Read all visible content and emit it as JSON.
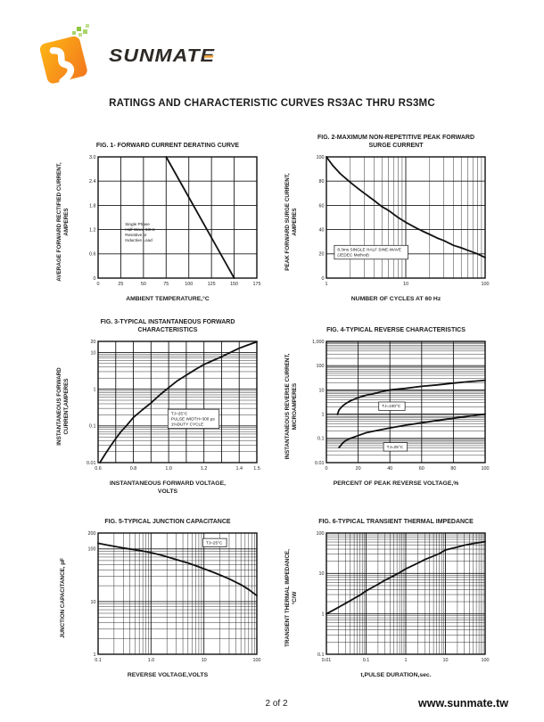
{
  "page": {
    "title": "RATINGS AND CHARACTERISTIC CURVES RS3AC THRU RS3MC",
    "footer": {
      "page_number": "2 of 2",
      "website": "www.sunmate.tw"
    }
  },
  "logo": {
    "brand": "SUNMATE",
    "colors": {
      "orange": "#f7941e",
      "orange_light": "#fdb515",
      "green": "#8dc63f",
      "text": "#2e2a26",
      "accent_bar": "#eda33c"
    }
  },
  "chart_data": [
    {
      "type": "line",
      "title": "FIG. 1- FORWARD CURRENT DERATING CURVE",
      "xlabel": "AMBIENT TEMPERATURE,°C",
      "ylabel": "AVERAGE FORWARD RECTIFIED CURRENT,\nAMPERES",
      "x": {
        "scale": "linear",
        "min": 0,
        "max": 175,
        "step": 25,
        "ticks": [
          {
            "v": 0,
            "label": "0"
          },
          {
            "v": 25,
            "label": "25"
          },
          {
            "v": 50,
            "label": "50"
          },
          {
            "v": 75,
            "label": "75"
          },
          {
            "v": 100,
            "label": "100"
          },
          {
            "v": 125,
            "label": "125"
          },
          {
            "v": 150,
            "label": "150"
          },
          {
            "v": 175,
            "label": "175"
          }
        ]
      },
      "y": {
        "scale": "linear",
        "min": 0,
        "max": 3,
        "step": 0.6,
        "ticks": [
          {
            "v": 0,
            "label": "0"
          },
          {
            "v": 0.6,
            "label": "0.6"
          },
          {
            "v": 1.2,
            "label": "1.2"
          },
          {
            "v": 1.8,
            "label": "1.8"
          },
          {
            "v": 2.4,
            "label": "2.4"
          },
          {
            "v": 3,
            "label": "3.0"
          }
        ]
      },
      "series": [
        {
          "name": "derating-line",
          "points": [
            [
              75,
              3
            ],
            [
              150,
              0
            ]
          ]
        }
      ],
      "annotations": [
        {
          "boxed": false,
          "fx": 0.15,
          "fy": 0.52,
          "lines": [
            "Single Phase",
            "Half Wave 60Hz",
            "Resistive or",
            "Inductive Load"
          ]
        }
      ]
    },
    {
      "type": "line",
      "title": "FIG. 2-MAXIMUM NON-REPETITIVE PEAK FORWARD\nSURGE CURRENT",
      "xlabel": "NUMBER OF CYCLES AT 60 Hz",
      "ylabel": "PEAK  FORWARD SURGE CURRENT,\nAMPERES",
      "x": {
        "scale": "log",
        "min": 1,
        "max": 100,
        "ticks": [
          {
            "v": 1,
            "label": "1"
          },
          {
            "v": 10,
            "label": "10"
          },
          {
            "v": 100,
            "label": "100"
          }
        ]
      },
      "y": {
        "scale": "linear",
        "min": 0,
        "max": 100,
        "step": 20,
        "ticks": [
          {
            "v": 0,
            "label": "0"
          },
          {
            "v": 20,
            "label": "20"
          },
          {
            "v": 40,
            "label": "40"
          },
          {
            "v": 60,
            "label": "60"
          },
          {
            "v": 80,
            "label": "80"
          },
          {
            "v": 100,
            "label": "100"
          }
        ]
      },
      "series": [
        {
          "name": "surge-current-curve",
          "points": [
            [
              1,
              100
            ],
            [
              1.2,
              93
            ],
            [
              1.5,
              86
            ],
            [
              2,
              79
            ],
            [
              2.5,
              74
            ],
            [
              3,
              70
            ],
            [
              4,
              64
            ],
            [
              5,
              59
            ],
            [
              6,
              56
            ],
            [
              8,
              50
            ],
            [
              10,
              46
            ],
            [
              13,
              42
            ],
            [
              16,
              39
            ],
            [
              20,
              36
            ],
            [
              25,
              33
            ],
            [
              30,
              31
            ],
            [
              40,
              27
            ],
            [
              50,
              25
            ],
            [
              60,
              23
            ],
            [
              80,
              20
            ],
            [
              100,
              17
            ]
          ]
        }
      ],
      "annotations": [
        {
          "boxed": true,
          "fx": 0.05,
          "fy": 0.73,
          "lines": [
            "8.3ms SINGLE HALF SINE-WAVE",
            "(JEDEC Method)"
          ]
        }
      ]
    },
    {
      "type": "line",
      "title": "FIG. 3-TYPICAL INSTANTANEOUS FORWARD\nCHARACTERISTICS",
      "xlabel": "INSTANTANEOUS FORWARD VOLTAGE,\nVOLTS",
      "ylabel": "INSTANTANEOUS FORWARD\nCURRENT,AMPERES",
      "x": {
        "scale": "linear",
        "min": 0.6,
        "max": 1.5,
        "step": 0.1,
        "ticks": [
          {
            "v": 0.6,
            "label": "0.6"
          },
          {
            "v": 0.8,
            "label": "0.8"
          },
          {
            "v": 1,
            "label": "1.0"
          },
          {
            "v": 1.2,
            "label": "1.2"
          },
          {
            "v": 1.4,
            "label": "1.4"
          },
          {
            "v": 1.5,
            "label": "1.5"
          }
        ]
      },
      "y": {
        "scale": "log",
        "min": 0.01,
        "max": 20,
        "ticks": [
          {
            "v": 0.01,
            "label": "0.01"
          },
          {
            "v": 0.1,
            "label": "0.1"
          },
          {
            "v": 1,
            "label": "1"
          },
          {
            "v": 10,
            "label": "10"
          },
          {
            "v": 20,
            "label": "20"
          }
        ]
      },
      "series": [
        {
          "name": "forward-characteristic-curve",
          "points": [
            [
              0.61,
              0.01
            ],
            [
              0.64,
              0.017
            ],
            [
              0.67,
              0.028
            ],
            [
              0.7,
              0.045
            ],
            [
              0.73,
              0.07
            ],
            [
              0.76,
              0.1
            ],
            [
              0.8,
              0.17
            ],
            [
              0.85,
              0.27
            ],
            [
              0.9,
              0.42
            ],
            [
              0.95,
              0.7
            ],
            [
              1,
              1.1
            ],
            [
              1.05,
              1.7
            ],
            [
              1.1,
              2.4
            ],
            [
              1.15,
              3.4
            ],
            [
              1.2,
              4.7
            ],
            [
              1.25,
              6
            ],
            [
              1.3,
              7.6
            ],
            [
              1.35,
              10
            ],
            [
              1.4,
              13
            ],
            [
              1.45,
              16
            ],
            [
              1.5,
              19.5
            ]
          ]
        }
      ],
      "annotations": [
        {
          "boxed": true,
          "fx": 0.44,
          "fy": 0.56,
          "lines": [
            "TJ=25°C",
            "PULSE WIDTH=300 μs",
            "1%DUTY CYCLE"
          ]
        }
      ]
    },
    {
      "type": "line",
      "title": "FIG. 4-TYPICAL REVERSE CHARACTERISTICS",
      "xlabel": "PERCENT OF PEAK REVERSE VOLTAGE,%",
      "ylabel": "INSTANTANEOUS REVERSE CURRENT,\nMICROAMPERES",
      "x": {
        "scale": "linear",
        "min": 0,
        "max": 100,
        "step": 20,
        "ticks": [
          {
            "v": 0,
            "label": "0"
          },
          {
            "v": 20,
            "label": "20"
          },
          {
            "v": 40,
            "label": "40"
          },
          {
            "v": 60,
            "label": "60"
          },
          {
            "v": 80,
            "label": "80"
          },
          {
            "v": 100,
            "label": "100"
          }
        ]
      },
      "y": {
        "scale": "log",
        "min": 0.01,
        "max": 1000,
        "ticks": [
          {
            "v": 0.01,
            "label": "0.01"
          },
          {
            "v": 0.1,
            "label": "0.1"
          },
          {
            "v": 1,
            "label": "1"
          },
          {
            "v": 10,
            "label": "10"
          },
          {
            "v": 100,
            "label": "100"
          },
          {
            "v": 1000,
            "label": "1,000"
          }
        ]
      },
      "series": [
        {
          "name": "reverse-current-100C",
          "points": [
            [
              7,
              1
            ],
            [
              8,
              1.5
            ],
            [
              10,
              2.1
            ],
            [
              12,
              2.7
            ],
            [
              15,
              3.5
            ],
            [
              20,
              4.8
            ],
            [
              25,
              6
            ],
            [
              30,
              7
            ],
            [
              35,
              8.5
            ],
            [
              40,
              10
            ],
            [
              50,
              11.5
            ],
            [
              60,
              14
            ],
            [
              70,
              16
            ],
            [
              80,
              19
            ],
            [
              90,
              22
            ],
            [
              100,
              25
            ]
          ]
        },
        {
          "name": "reverse-current-25C",
          "points": [
            [
              8,
              0.042
            ],
            [
              9,
              0.05
            ],
            [
              10,
              0.062
            ],
            [
              12,
              0.08
            ],
            [
              15,
              0.1
            ],
            [
              20,
              0.13
            ],
            [
              25,
              0.17
            ],
            [
              30,
              0.2
            ],
            [
              40,
              0.27
            ],
            [
              50,
              0.35
            ],
            [
              60,
              0.44
            ],
            [
              70,
              0.55
            ],
            [
              80,
              0.68
            ],
            [
              90,
              0.83
            ],
            [
              100,
              1
            ]
          ]
        }
      ],
      "annotations": [
        {
          "boxed": true,
          "fx": 0.33,
          "fy": 0.5,
          "lines": [
            "TJ=100°C"
          ]
        },
        {
          "boxed": true,
          "fx": 0.36,
          "fy": 0.835,
          "lines": [
            "TJ=25°C"
          ]
        }
      ]
    },
    {
      "type": "line",
      "title": "FIG. 5-TYPICAL JUNCTION CAPACITANCE",
      "xlabel": "REVERSE VOLTAGE,VOLTS",
      "ylabel": "JUNCTION CAPACITANCE, pF",
      "x": {
        "scale": "log",
        "min": 0.1,
        "max": 100,
        "ticks": [
          {
            "v": 0.1,
            "label": "0.1"
          },
          {
            "v": 1,
            "label": "1.0"
          },
          {
            "v": 10,
            "label": "10"
          },
          {
            "v": 100,
            "label": "100"
          }
        ]
      },
      "y": {
        "scale": "log",
        "min": 1,
        "max": 200,
        "ticks": [
          {
            "v": 1,
            "label": "1"
          },
          {
            "v": 10,
            "label": "10"
          },
          {
            "v": 100,
            "label": "100"
          },
          {
            "v": 200,
            "label": "200"
          }
        ]
      },
      "series": [
        {
          "name": "junction-capacitance-curve",
          "points": [
            [
              0.1,
              128
            ],
            [
              0.15,
              118
            ],
            [
              0.2,
              112
            ],
            [
              0.3,
              104
            ],
            [
              0.5,
              96
            ],
            [
              0.7,
              91
            ],
            [
              1,
              85
            ],
            [
              1.5,
              77
            ],
            [
              2,
              71
            ],
            [
              3,
              63
            ],
            [
              5,
              54
            ],
            [
              7,
              48
            ],
            [
              10,
              42
            ],
            [
              15,
              36
            ],
            [
              20,
              32
            ],
            [
              30,
              27
            ],
            [
              50,
              21
            ],
            [
              70,
              17
            ],
            [
              100,
              13
            ]
          ]
        }
      ],
      "annotations": [
        {
          "boxed": true,
          "fx": 0.66,
          "fy": 0.045,
          "lines": [
            "TJ=25°C"
          ]
        }
      ]
    },
    {
      "type": "line",
      "title": "FIG. 6-TYPICAL TRANSIENT THERMAL IMPEDANCE",
      "xlabel": "t,PULSE DURATION,sec.",
      "ylabel": "TRANSIENT THERMAL IMPEDANCE,\n°C/W",
      "x": {
        "scale": "log",
        "min": 0.01,
        "max": 100,
        "ticks": [
          {
            "v": 0.01,
            "label": "0.01"
          },
          {
            "v": 0.1,
            "label": "0.1"
          },
          {
            "v": 1,
            "label": "1"
          },
          {
            "v": 10,
            "label": "10"
          },
          {
            "v": 100,
            "label": "100"
          }
        ]
      },
      "y": {
        "scale": "log",
        "min": 0.1,
        "max": 100,
        "ticks": [
          {
            "v": 0.1,
            "label": "0.1"
          },
          {
            "v": 1,
            "label": "1"
          },
          {
            "v": 10,
            "label": "10"
          },
          {
            "v": 100,
            "label": "100"
          }
        ]
      },
      "series": [
        {
          "name": "thermal-impedance-curve",
          "points": [
            [
              0.01,
              1
            ],
            [
              0.02,
              1.45
            ],
            [
              0.03,
              1.8
            ],
            [
              0.05,
              2.4
            ],
            [
              0.07,
              2.9
            ],
            [
              0.1,
              3.7
            ],
            [
              0.2,
              5.4
            ],
            [
              0.3,
              6.8
            ],
            [
              0.5,
              8.8
            ],
            [
              0.7,
              10.5
            ],
            [
              1,
              13
            ],
            [
              2,
              18
            ],
            [
              3,
              22
            ],
            [
              5,
              27
            ],
            [
              7,
              31
            ],
            [
              10,
              38
            ],
            [
              20,
              45
            ],
            [
              30,
              50
            ],
            [
              50,
              55
            ],
            [
              70,
              58
            ],
            [
              100,
              61
            ]
          ]
        }
      ],
      "annotations": []
    }
  ]
}
